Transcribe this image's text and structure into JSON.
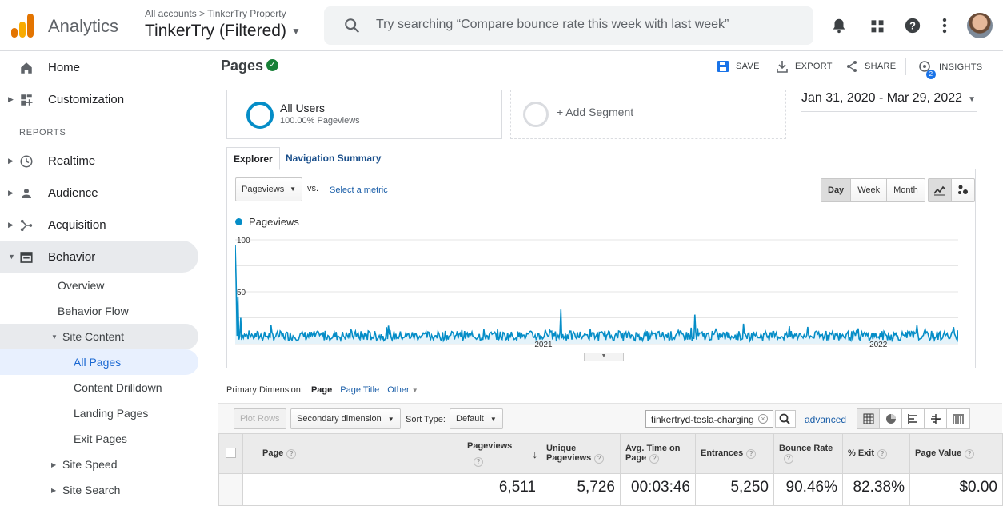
{
  "app": {
    "name": "Analytics",
    "breadcrumb": [
      "All accounts",
      "TinkerTry Property"
    ],
    "property": "TinkerTry (Filtered)",
    "search_placeholder": "Try searching “Compare bounce rate this week with last week”"
  },
  "sidebar": {
    "top_items": [
      {
        "label": "Home",
        "icon": "home-icon"
      },
      {
        "label": "Customization",
        "icon": "dashboard-icon"
      }
    ],
    "reports_header": "REPORTS",
    "report_items": [
      {
        "label": "Realtime",
        "icon": "clock-icon"
      },
      {
        "label": "Audience",
        "icon": "person-icon"
      },
      {
        "label": "Acquisition",
        "icon": "acquisition-icon"
      },
      {
        "label": "Behavior",
        "icon": "behavior-icon"
      }
    ],
    "behavior_sub": [
      "Overview",
      "Behavior Flow",
      "Site Content"
    ],
    "site_content_sub": [
      "All Pages",
      "Content Drilldown",
      "Landing Pages",
      "Exit Pages"
    ],
    "behavior_more": [
      "Site Speed",
      "Site Search"
    ]
  },
  "header": {
    "title": "Pages",
    "actions": {
      "save": "SAVE",
      "export": "EXPORT",
      "share": "SHARE",
      "insights": "INSIGHTS",
      "insights_badge": "2"
    }
  },
  "segments": {
    "active_name": "All Users",
    "active_sub": "100.00% Pageviews",
    "add": "+ Add Segment"
  },
  "date_range": "Jan 31, 2020 - Mar 29, 2022",
  "tabs": {
    "explorer": "Explorer",
    "nav_summary": "Navigation Summary"
  },
  "chart_controls": {
    "metric": "Pageviews",
    "vs": "vs.",
    "select_metric": "Select a metric",
    "granularity": [
      "Day",
      "Week",
      "Month"
    ],
    "active_granularity": "Day"
  },
  "chart_data": {
    "type": "line",
    "series": [
      {
        "name": "Pageviews",
        "color": "#058dc7"
      }
    ],
    "ylabels": [
      "100",
      "50"
    ],
    "xlabels": [
      "2021",
      "2022"
    ],
    "ylim": [
      0,
      100
    ],
    "x_start": "2020-01-31",
    "x_end": "2022-03-29",
    "area_fill": true,
    "grid": "horizontal",
    "notable_points": [
      {
        "date": "2020-01-31",
        "value": 95
      },
      {
        "date": "2020-02-01",
        "value": 62
      },
      {
        "date": "2020-02-03",
        "value": 45
      },
      {
        "date": "2020-02-06",
        "value": 25
      },
      {
        "date": "2021-01-20",
        "value": 33
      },
      {
        "date": "2021-06-15",
        "value": 28
      },
      {
        "date": "2022-03-29",
        "value": 13
      }
    ],
    "typical_range": [
      3,
      20
    ]
  },
  "table_controls": {
    "primary_dimension_label": "Primary Dimension:",
    "dimensions": [
      "Page",
      "Page Title",
      "Other"
    ],
    "plot_rows": "Plot Rows",
    "secondary_dimension": "Secondary dimension",
    "sort_type_label": "Sort Type:",
    "sort_type": "Default",
    "filter_value": "tinkertryd-tesla-charging",
    "advanced": "advanced"
  },
  "table": {
    "columns": [
      "Page",
      "Pageviews",
      "Unique Pageviews",
      "Avg. Time on Page",
      "Entrances",
      "Bounce Rate",
      "% Exit",
      "Page Value"
    ],
    "totals": [
      "",
      "6,511",
      "5,726",
      "00:03:46",
      "5,250",
      "90.46%",
      "82.38%",
      "$0.00"
    ]
  }
}
